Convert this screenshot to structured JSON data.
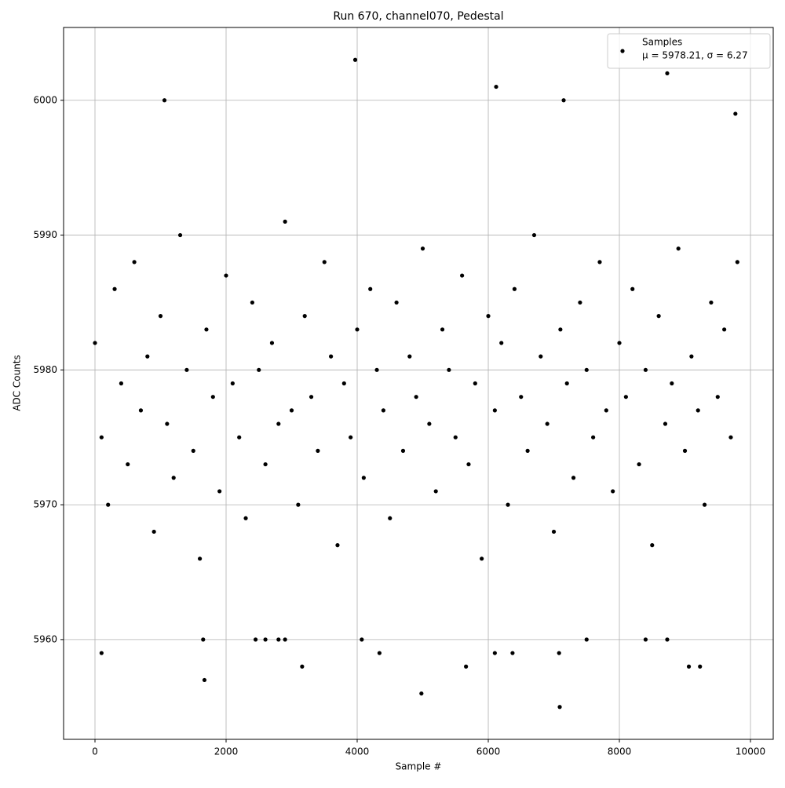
{
  "chart_data": {
    "type": "scatter",
    "title": "Run 670, channel070, Pedestal",
    "x_label": "Sample #",
    "y_label": "ADC Counts",
    "series": [
      {
        "name": "Samples",
        "stats": "μ = 5978.21, σ = 6.27",
        "color": "#000000",
        "x": [
          0,
          100,
          200,
          300,
          400,
          500,
          600,
          700,
          800,
          900,
          1000,
          1100,
          1200,
          1300,
          1400,
          1500,
          1600,
          1700,
          1800,
          1900,
          2000,
          2100,
          2200,
          2300,
          2400,
          2500,
          2600,
          2700,
          2800,
          2900,
          3000,
          3100,
          3200,
          3300,
          3400,
          3500,
          3600,
          3700,
          3800,
          3900,
          4000,
          4100,
          4200,
          4300,
          4400,
          4500,
          4600,
          4700,
          4800,
          4900,
          5000,
          5100,
          5200,
          5300,
          5400,
          5500,
          5600,
          5700,
          5800,
          5900,
          6000,
          6100,
          6200,
          6300,
          6400,
          6500,
          6600,
          6700,
          6800,
          6900,
          7000,
          7100,
          7200,
          7300,
          7400,
          7500,
          7600,
          7700,
          7800,
          7900,
          8000,
          8100,
          8200,
          8300,
          8400,
          8500,
          8600,
          8700,
          8800,
          8900,
          9000,
          9100,
          9200,
          9300,
          9400,
          9500,
          9600,
          9700,
          9800,
          3970,
          6120,
          1060,
          7150,
          8730,
          9770,
          100,
          1670,
          1650,
          3160,
          4980,
          5660,
          7090,
          6100,
          9060,
          9230,
          8730,
          8400,
          4070,
          4340,
          6370,
          7080,
          7500,
          2900,
          2800,
          2450,
          2600
        ],
        "values": [
          5982,
          5975,
          5970,
          5986,
          5979,
          5973,
          5988,
          5977,
          5981,
          5968,
          5984,
          5976,
          5972,
          5990,
          5980,
          5974,
          5966,
          5983,
          5978,
          5971,
          5987,
          5979,
          5975,
          5969,
          5985,
          5980,
          5973,
          5982,
          5976,
          5991,
          5977,
          5970,
          5984,
          5978,
          5974,
          5988,
          5981,
          5967,
          5979,
          5975,
          5983,
          5972,
          5986,
          5980,
          5977,
          5969,
          5985,
          5974,
          5981,
          5978,
          5989,
          5976,
          5971,
          5983,
          5980,
          5975,
          5987,
          5973,
          5979,
          5966,
          5984,
          5977,
          5982,
          5970,
          5986,
          5978,
          5974,
          5990,
          5981,
          5976,
          5968,
          5983,
          5979,
          5972,
          5985,
          5980,
          5975,
          5988,
          5977,
          5971,
          5982,
          5978,
          5986,
          5973,
          5980,
          5967,
          5984,
          5976,
          5979,
          5989,
          5974,
          5981,
          5977,
          5970,
          5985,
          5978,
          5983,
          5975,
          5988,
          6003,
          6001,
          6000,
          6000,
          6002,
          5999,
          5959,
          5957,
          5960,
          5958,
          5956,
          5958,
          5955,
          5959,
          5958,
          5958,
          5960,
          5960,
          5960,
          5959,
          5959,
          5959,
          5960,
          5960,
          5960,
          5960,
          5960
        ]
      }
    ],
    "xlim": [
      -479,
      10347
    ],
    "ylim": [
      5952.6,
      6005.4
    ],
    "xticks": [
      0,
      2000,
      4000,
      6000,
      8000,
      10000
    ],
    "yticks": [
      5960,
      5970,
      5980,
      5990,
      6000
    ],
    "grid": true,
    "legend": "upper right"
  }
}
